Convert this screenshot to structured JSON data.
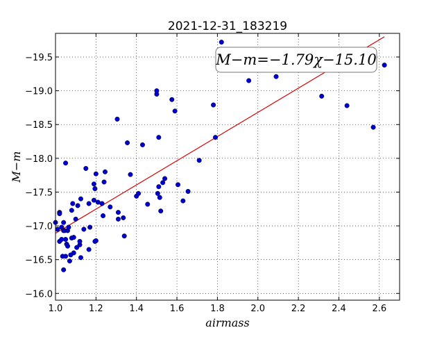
{
  "chart_data": {
    "type": "scatter",
    "title": "2021-12-31_183219",
    "xlabel": "airmass",
    "ylabel": "M−m",
    "annotation": "M−m=−1.79χ−15.10",
    "xlim": [
      1.0,
      2.7
    ],
    "ylim": [
      -19.85,
      -15.9
    ],
    "y_inverted": true,
    "grid": true,
    "x_ticks": [
      1.0,
      1.2,
      1.4,
      1.6,
      1.8,
      2.0,
      2.2,
      2.4,
      2.6
    ],
    "x_tick_labels": [
      "1.0",
      "1.2",
      "1.4",
      "1.6",
      "1.8",
      "2.0",
      "2.2",
      "2.4",
      "2.6"
    ],
    "y_ticks": [
      -16.0,
      -16.5,
      -17.0,
      -17.5,
      -18.0,
      -18.5,
      -19.0,
      -19.5
    ],
    "y_tick_labels": [
      "−16.0",
      "−16.5",
      "−17.0",
      "−17.5",
      "−18.0",
      "−18.5",
      "−19.0",
      "−19.5"
    ],
    "series": [
      {
        "kind": "points",
        "color": "#0000cc",
        "x": [
          1.0,
          1.01,
          1.02,
          1.02,
          1.02,
          1.03,
          1.03,
          1.035,
          1.04,
          1.04,
          1.04,
          1.045,
          1.05,
          1.05,
          1.05,
          1.055,
          1.06,
          1.06,
          1.065,
          1.07,
          1.075,
          1.08,
          1.08,
          1.085,
          1.09,
          1.09,
          1.1,
          1.105,
          1.11,
          1.12,
          1.12,
          1.125,
          1.125,
          1.14,
          1.15,
          1.165,
          1.165,
          1.17,
          1.19,
          1.19,
          1.195,
          1.195,
          1.2,
          1.2,
          1.21,
          1.23,
          1.235,
          1.24,
          1.245,
          1.27,
          1.305,
          1.31,
          1.31,
          1.335,
          1.34,
          1.355,
          1.37,
          1.4,
          1.41,
          1.43,
          1.455,
          1.5,
          1.5,
          1.505,
          1.51,
          1.51,
          1.515,
          1.52,
          1.53,
          1.54,
          1.575,
          1.59,
          1.605,
          1.63,
          1.655,
          1.71,
          1.78,
          1.79,
          1.82,
          1.955,
          2.09,
          2.315,
          2.44,
          2.57,
          2.625
        ],
        "y": [
          -17.05,
          -16.95,
          -17.2,
          -17.18,
          -16.77,
          -16.98,
          -16.8,
          -16.55,
          -16.35,
          -16.93,
          -17.05,
          -16.93,
          -16.55,
          -16.8,
          -17.93,
          -16.73,
          -16.93,
          -16.7,
          -16.98,
          -16.48,
          -16.57,
          -16.82,
          -17.23,
          -17.33,
          -16.6,
          -16.83,
          -17.1,
          -16.68,
          -17.3,
          -16.72,
          -16.77,
          -16.53,
          -17.4,
          -16.95,
          -17.85,
          -17.33,
          -16.65,
          -16.98,
          -17.62,
          -17.38,
          -16.77,
          -17.55,
          -17.77,
          -16.78,
          -17.35,
          -17.33,
          -17.15,
          -17.65,
          -17.8,
          -17.28,
          -18.58,
          -17.1,
          -17.2,
          -17.12,
          -16.85,
          -18.23,
          -17.76,
          -17.44,
          -17.48,
          -18.2,
          -17.32,
          -18.95,
          -19.0,
          -17.48,
          -17.58,
          -18.31,
          -17.42,
          -17.22,
          -17.64,
          -17.7,
          -18.87,
          -18.7,
          -17.61,
          -17.37,
          -17.51,
          -17.97,
          -18.79,
          -18.31,
          -19.72,
          -19.15,
          -19.21,
          -18.92,
          -18.78,
          -18.46,
          -19.38
        ]
      },
      {
        "kind": "fit-line",
        "color": "#dd0000",
        "x": [
          1.0,
          2.625
        ],
        "y": [
          -16.89,
          -19.8
        ]
      }
    ]
  }
}
